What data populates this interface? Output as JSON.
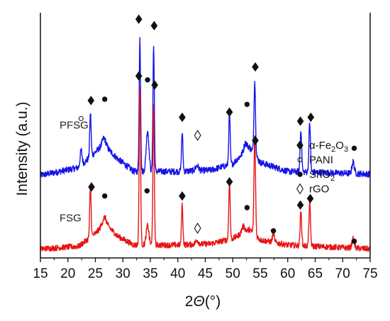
{
  "chart_data": {
    "type": "line",
    "xlabel": "2Θ(°)",
    "ylabel": "Intensity (a.u.)",
    "xlim": [
      15,
      75
    ],
    "xticks": [
      "15",
      "20",
      "25",
      "30",
      "35",
      "40",
      "45",
      "50",
      "55",
      "60",
      "65",
      "70",
      "75"
    ],
    "yticks": "none",
    "grid": false,
    "colors": {
      "PFSG": "#1414e6",
      "FSG": "#e61414",
      "axis": "#111111",
      "marker": "#111111"
    },
    "series": [
      {
        "name": "PFSG",
        "baseline": 0.57,
        "noise": 0.05,
        "background": [
          [
            15,
            0.02
          ],
          [
            22,
            0.08
          ],
          [
            24,
            0.16
          ],
          [
            26.5,
            0.26
          ],
          [
            29,
            0.15
          ],
          [
            32,
            0.05
          ],
          [
            40,
            0.05
          ],
          [
            46,
            0.06
          ],
          [
            50,
            0.11
          ],
          [
            53,
            0.24
          ],
          [
            55,
            0.12
          ],
          [
            60,
            0.05
          ],
          [
            75,
            0.03
          ]
        ],
        "peaks": [
          {
            "x": 22.4,
            "h": 0.12,
            "w": 0.25,
            "phase": "PANI"
          },
          {
            "x": 24.1,
            "h": 0.34,
            "w": 0.18,
            "phase": "alpha-Fe2O3"
          },
          {
            "x": 26.6,
            "h": 0.05,
            "w": 0.5,
            "phase": "SnO2"
          },
          {
            "x": 33.1,
            "h": 1.03,
            "w": 0.18,
            "phase": "alpha-Fe2O3"
          },
          {
            "x": 34.5,
            "h": 0.32,
            "w": 0.35,
            "phase": "SnO2"
          },
          {
            "x": 35.6,
            "h": 0.97,
            "w": 0.18,
            "phase": "alpha-Fe2O3"
          },
          {
            "x": 40.8,
            "h": 0.3,
            "w": 0.18,
            "phase": "alpha-Fe2O3"
          },
          {
            "x": 43.5,
            "h": 0.04,
            "w": 0.4,
            "phase": "rGO"
          },
          {
            "x": 49.4,
            "h": 0.4,
            "w": 0.18,
            "phase": "alpha-Fe2O3"
          },
          {
            "x": 52.3,
            "h": 0.06,
            "w": 0.4,
            "phase": "SnO2"
          },
          {
            "x": 54.0,
            "h": 0.57,
            "w": 0.2,
            "phase": "alpha-Fe2O3"
          },
          {
            "x": 62.4,
            "h": 0.33,
            "w": 0.2,
            "phase": "alpha-Fe2O3"
          },
          {
            "x": 64.0,
            "h": 0.38,
            "w": 0.2,
            "phase": "alpha-Fe2O3"
          },
          {
            "x": 71.9,
            "h": 0.09,
            "w": 0.3,
            "phase": "SnO2"
          }
        ]
      },
      {
        "name": "FSG",
        "baseline": 0.0,
        "noise": 0.045,
        "background": [
          [
            15,
            0.02
          ],
          [
            22,
            0.04
          ],
          [
            25,
            0.14
          ],
          [
            26.8,
            0.22
          ],
          [
            29,
            0.12
          ],
          [
            32,
            0.05
          ],
          [
            40,
            0.05
          ],
          [
            46,
            0.06
          ],
          [
            50,
            0.1
          ],
          [
            53,
            0.17
          ],
          [
            55,
            0.09
          ],
          [
            60,
            0.05
          ],
          [
            75,
            0.02
          ]
        ],
        "peaks": [
          {
            "x": 24.1,
            "h": 0.4,
            "w": 0.18,
            "phase": "alpha-Fe2O3"
          },
          {
            "x": 26.6,
            "h": 0.05,
            "w": 0.5,
            "phase": "SnO2"
          },
          {
            "x": 33.1,
            "h": 1.23,
            "w": 0.18,
            "phase": "alpha-Fe2O3"
          },
          {
            "x": 34.5,
            "h": 0.15,
            "w": 0.35,
            "phase": "SnO2"
          },
          {
            "x": 35.6,
            "h": 1.07,
            "w": 0.18,
            "phase": "alpha-Fe2O3"
          },
          {
            "x": 40.8,
            "h": 0.31,
            "w": 0.18,
            "phase": "alpha-Fe2O3"
          },
          {
            "x": 43.5,
            "h": 0.03,
            "w": 0.4,
            "phase": "rGO"
          },
          {
            "x": 49.4,
            "h": 0.45,
            "w": 0.18,
            "phase": "alpha-Fe2O3"
          },
          {
            "x": 51.9,
            "h": 0.05,
            "w": 0.4,
            "phase": "SnO2"
          },
          {
            "x": 54.0,
            "h": 0.75,
            "w": 0.2,
            "phase": "alpha-Fe2O3"
          },
          {
            "x": 57.4,
            "h": 0.07,
            "w": 0.25,
            "phase": "SnO2"
          },
          {
            "x": 62.4,
            "h": 0.26,
            "w": 0.2,
            "phase": "alpha-Fe2O3"
          },
          {
            "x": 64.0,
            "h": 0.33,
            "w": 0.2,
            "phase": "alpha-Fe2O3"
          },
          {
            "x": 71.9,
            "h": 0.07,
            "w": 0.3,
            "phase": "SnO2"
          }
        ]
      }
    ],
    "markers": [
      {
        "series": "PFSG",
        "symbol": "open-circle",
        "x": 22.4,
        "y": 1.03
      },
      {
        "series": "PFSG",
        "symbol": "diamond",
        "x": 24.2,
        "y": 1.17
      },
      {
        "series": "PFSG",
        "symbol": "dot",
        "x": 26.7,
        "y": 1.18
      },
      {
        "series": "PFSG",
        "symbol": "diamond",
        "x": 32.9,
        "y": 1.8
      },
      {
        "series": "PFSG",
        "symbol": "dot",
        "x": 34.5,
        "y": 1.33
      },
      {
        "series": "PFSG",
        "symbol": "diamond",
        "x": 35.7,
        "y": 1.75
      },
      {
        "series": "PFSG",
        "symbol": "diamond",
        "x": 40.8,
        "y": 1.04
      },
      {
        "series": "PFSG",
        "symbol": "open-diamond",
        "x": 43.6,
        "y": 0.9
      },
      {
        "series": "PFSG",
        "symbol": "diamond",
        "x": 49.4,
        "y": 1.08
      },
      {
        "series": "PFSG",
        "symbol": "dot",
        "x": 52.6,
        "y": 1.14
      },
      {
        "series": "PFSG",
        "symbol": "diamond",
        "x": 54.1,
        "y": 1.43
      },
      {
        "series": "PFSG",
        "symbol": "diamond",
        "x": 62.3,
        "y": 1.01
      },
      {
        "series": "PFSG",
        "symbol": "diamond",
        "x": 64.2,
        "y": 1.04
      },
      {
        "series": "PFSG",
        "symbol": "dot",
        "x": 72.1,
        "y": 0.8
      },
      {
        "series": "FSG",
        "symbol": "diamond",
        "x": 24.3,
        "y": 0.5
      },
      {
        "series": "FSG",
        "symbol": "dot",
        "x": 26.7,
        "y": 0.43
      },
      {
        "series": "FSG",
        "symbol": "diamond",
        "x": 32.9,
        "y": 1.36
      },
      {
        "series": "FSG",
        "symbol": "dot",
        "x": 34.4,
        "y": 0.47
      },
      {
        "series": "FSG",
        "symbol": "diamond",
        "x": 35.8,
        "y": 1.29
      },
      {
        "series": "FSG",
        "symbol": "diamond",
        "x": 40.8,
        "y": 0.43
      },
      {
        "series": "FSG",
        "symbol": "open-diamond",
        "x": 43.6,
        "y": 0.18
      },
      {
        "series": "FSG",
        "symbol": "diamond",
        "x": 49.4,
        "y": 0.54
      },
      {
        "series": "FSG",
        "symbol": "dot",
        "x": 52.6,
        "y": 0.34
      },
      {
        "series": "FSG",
        "symbol": "diamond",
        "x": 54.1,
        "y": 0.86
      },
      {
        "series": "FSG",
        "symbol": "dot",
        "x": 57.4,
        "y": 0.16
      },
      {
        "series": "FSG",
        "symbol": "diamond",
        "x": 62.3,
        "y": 0.36
      },
      {
        "series": "FSG",
        "symbol": "diamond",
        "x": 64.1,
        "y": 0.41
      },
      {
        "series": "FSG",
        "symbol": "dot",
        "x": 72.1,
        "y": 0.08
      }
    ],
    "legend": {
      "placement": "right",
      "entries": [
        {
          "symbol": "diamond",
          "label": "α-Fe2O3",
          "main": "α-Fe",
          "sub1": "2",
          "mid": "O",
          "sub2": "3"
        },
        {
          "symbol": "open-circle",
          "label": "PANI",
          "main": "PANI"
        },
        {
          "symbol": "dot",
          "label": "SnO2",
          "main": "SnO",
          "sub1": "2"
        },
        {
          "symbol": "open-diamond",
          "label": "rGO",
          "main": "rGO"
        }
      ]
    }
  }
}
